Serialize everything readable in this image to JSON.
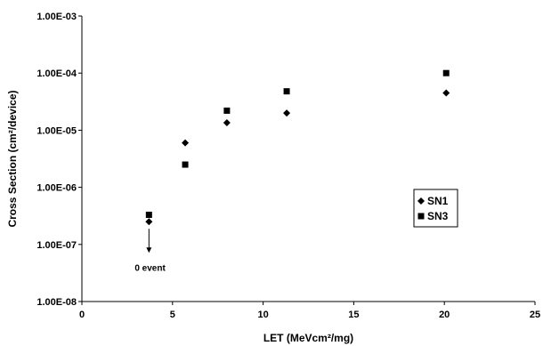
{
  "chart_data": {
    "type": "scatter",
    "title": "",
    "xlabel": "LET (MeVcm²/mg)",
    "ylabel": "Cross Section (cm²/device)",
    "xlim": [
      0,
      25
    ],
    "ylim": [
      1e-08,
      0.001
    ],
    "yscale": "log",
    "xticks": [
      0,
      5,
      10,
      15,
      20,
      25
    ],
    "xtick_labels": [
      "0",
      "5",
      "10",
      "15",
      "20",
      "25"
    ],
    "yticks": [
      1e-08,
      1e-07,
      1e-06,
      1e-05,
      0.0001,
      0.001
    ],
    "ytick_labels": [
      "1.00E-08",
      "1.00E-07",
      "1.00E-06",
      "1.00E-05",
      "1.00E-04",
      "1.00E-03"
    ],
    "grid": false,
    "legend_position": "right",
    "series": [
      {
        "name": "SN1",
        "marker": "diamond",
        "color": "#000000",
        "x": [
          3.7,
          5.7,
          8.0,
          11.3,
          20.1
        ],
        "y": [
          2.5e-07,
          6e-06,
          1.35e-05,
          2e-05,
          4.5e-05
        ]
      },
      {
        "name": "SN3",
        "marker": "square",
        "color": "#000000",
        "x": [
          3.7,
          5.7,
          8.0,
          11.3,
          20.1
        ],
        "y": [
          3.3e-07,
          2.5e-06,
          2.2e-05,
          4.8e-05,
          0.0001
        ]
      }
    ],
    "annotations": [
      {
        "text": "0 event",
        "x": 3.7,
        "y": 2.5e-07,
        "arrow": "down"
      }
    ]
  }
}
